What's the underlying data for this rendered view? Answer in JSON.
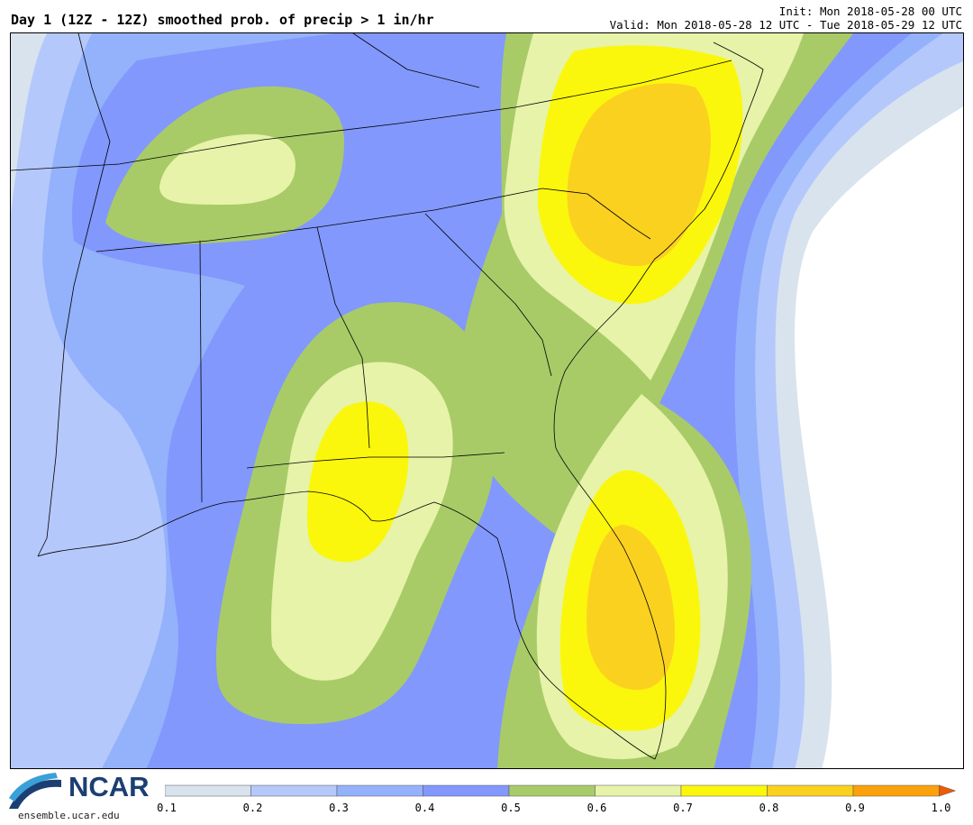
{
  "header": {
    "title": "Day 1 (12Z - 12Z) smoothed prob. of precip > 1 in/hr",
    "init": "Init: Mon 2018-05-28 00 UTC",
    "valid": "Valid: Mon 2018-05-28 12 UTC - Tue 2018-05-29 12 UTC"
  },
  "colors": {
    "c01": "#d8e3ee",
    "c02": "#b4c8fb",
    "c03": "#94b2fb",
    "c04": "#8298fc",
    "c05": "#a8cb68",
    "c06": "#e6f3a8",
    "c07": "#fbf70c",
    "c08": "#fbd120",
    "c09": "#fba10c",
    "c10": "#ee5a06"
  },
  "colorbar": {
    "labels": [
      "0.1",
      "0.2",
      "0.3",
      "0.4",
      "0.5",
      "0.6",
      "0.7",
      "0.8",
      "0.9",
      "1.0"
    ]
  },
  "logo": {
    "name": "NCAR",
    "url": "ensemble.ucar.edu"
  }
}
